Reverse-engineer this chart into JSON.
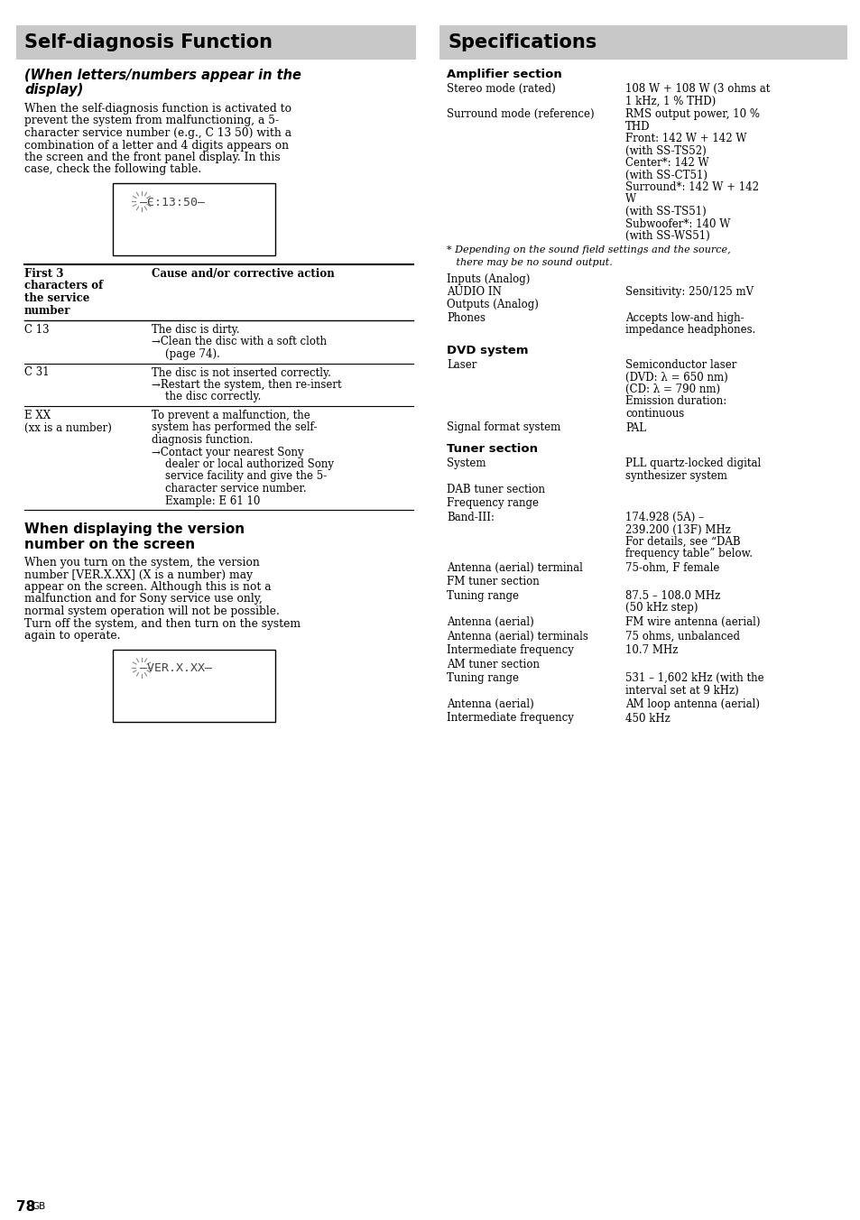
{
  "page_bg": "#ffffff",
  "header_bg": "#c8c8c8",
  "left_title": "Self-diagnosis Function",
  "right_title": "Specifications",
  "left_subtitle": "(When letters/numbers appear in the\ndisplay)",
  "left_intro_lines": [
    "When the self-diagnosis function is activated to",
    "prevent the system from malfunctioning, a 5-",
    "character service number (e.g., C 13 50) with a",
    "combination of a letter and 4 digits appears on",
    "the screen and the front panel display. In this",
    "case, check the following table."
  ],
  "display_text1": "C:13:50",
  "table_col1_header": "First 3\ncharacters of\nthe service\nnumber",
  "table_col2_header": "Cause and/or corrective action",
  "table_rows": [
    {
      "col1_lines": [
        "C 13"
      ],
      "col2_lines": [
        "The disc is dirty.",
        "→Clean the disc with a soft cloth",
        "    (page 74)."
      ]
    },
    {
      "col1_lines": [
        "C 31"
      ],
      "col2_lines": [
        "The disc is not inserted correctly.",
        "→Restart the system, then re-insert",
        "    the disc correctly."
      ]
    },
    {
      "col1_lines": [
        "E XX",
        "(xx is a number)"
      ],
      "col2_lines": [
        "To prevent a malfunction, the",
        "system has performed the self-",
        "diagnosis function.",
        "→Contact your nearest Sony",
        "    dealer or local authorized Sony",
        "    service facility and give the 5-",
        "    character service number.",
        "    Example: E 61 10"
      ]
    }
  ],
  "left_subtitle2_lines": [
    "When displaying the version",
    "number on the screen"
  ],
  "left_body2_lines": [
    "When you turn on the system, the version",
    "number [VER.X.XX] (X is a number) may",
    "appear on the screen. Although this is not a",
    "malfunction and for Sony service use only,",
    "normal system operation will not be possible.",
    "Turn off the system, and then turn on the system",
    "again to operate."
  ],
  "display_text2": "VER.X.XX",
  "page_number": "78",
  "page_number_suffix": "GB",
  "right_amp_heading": "Amplifier section",
  "right_amp_items": [
    {
      "label": "Stereo mode (rated)",
      "value_lines": [
        "108 W + 108 W (3 ohms at",
        "1 kHz, 1 % THD)"
      ]
    },
    {
      "label": "Surround mode (reference)",
      "value_lines": [
        "RMS output power, 10 %",
        "THD",
        "Front: 142 W + 142 W",
        "(with SS-TS52)",
        "Center*: 142 W",
        "(with SS-CT51)",
        "Surround*: 142 W + 142",
        "W",
        "(with SS-TS51)",
        "Subwoofer*: 140 W",
        "(with SS-WS51)"
      ]
    }
  ],
  "footnote_lines": [
    "* Depending on the sound field settings and the source,",
    "   there may be no sound output."
  ],
  "right_amp_extra": [
    {
      "label": "Inputs (Analog)",
      "value_lines": []
    },
    {
      "label": "AUDIO IN",
      "value_lines": [
        "Sensitivity: 250/125 mV"
      ]
    },
    {
      "label": "Outputs (Analog)",
      "value_lines": []
    },
    {
      "label": "Phones",
      "value_lines": [
        "Accepts low-and high-",
        "impedance headphones."
      ]
    }
  ],
  "right_dvd_heading": "DVD system",
  "right_dvd_items": [
    {
      "label": "Laser",
      "value_lines": [
        "Semiconductor laser",
        "(DVD: λ = 650 nm)",
        "(CD: λ = 790 nm)",
        "Emission duration:",
        "continuous"
      ]
    },
    {
      "label": "Signal format system",
      "value_lines": [
        "PAL"
      ]
    }
  ],
  "right_tuner_heading": "Tuner section",
  "right_tuner_items": [
    {
      "label": "System",
      "value_lines": [
        "PLL quartz-locked digital",
        "synthesizer system"
      ]
    },
    {
      "label": "DAB tuner section",
      "value_lines": []
    },
    {
      "label": "Frequency range",
      "value_lines": []
    },
    {
      "label": "Band-III:",
      "value_lines": [
        "174.928 (5A) –",
        "239.200 (13F) MHz",
        "For details, see “DAB",
        "frequency table” below."
      ]
    },
    {
      "label": "Antenna (aerial) terminal",
      "value_lines": [
        "75-ohm, F female"
      ]
    },
    {
      "label": "FM tuner section",
      "value_lines": []
    },
    {
      "label": "Tuning range",
      "value_lines": [
        "87.5 – 108.0 MHz",
        "(50 kHz step)"
      ]
    },
    {
      "label": "Antenna (aerial)",
      "value_lines": [
        "FM wire antenna (aerial)"
      ]
    },
    {
      "label": "Antenna (aerial) terminals",
      "value_lines": [
        "75 ohms, unbalanced"
      ]
    },
    {
      "label": "Intermediate frequency",
      "value_lines": [
        "10.7 MHz"
      ]
    },
    {
      "label": "AM tuner section",
      "value_lines": []
    },
    {
      "label": "Tuning range",
      "value_lines": [
        "531 – 1,602 kHz (with the",
        "interval set at 9 kHz)"
      ]
    },
    {
      "label": "Antenna (aerial)",
      "value_lines": [
        "AM loop antenna (aerial)"
      ]
    },
    {
      "label": "Intermediate frequency",
      "value_lines": [
        "450 kHz"
      ]
    }
  ]
}
